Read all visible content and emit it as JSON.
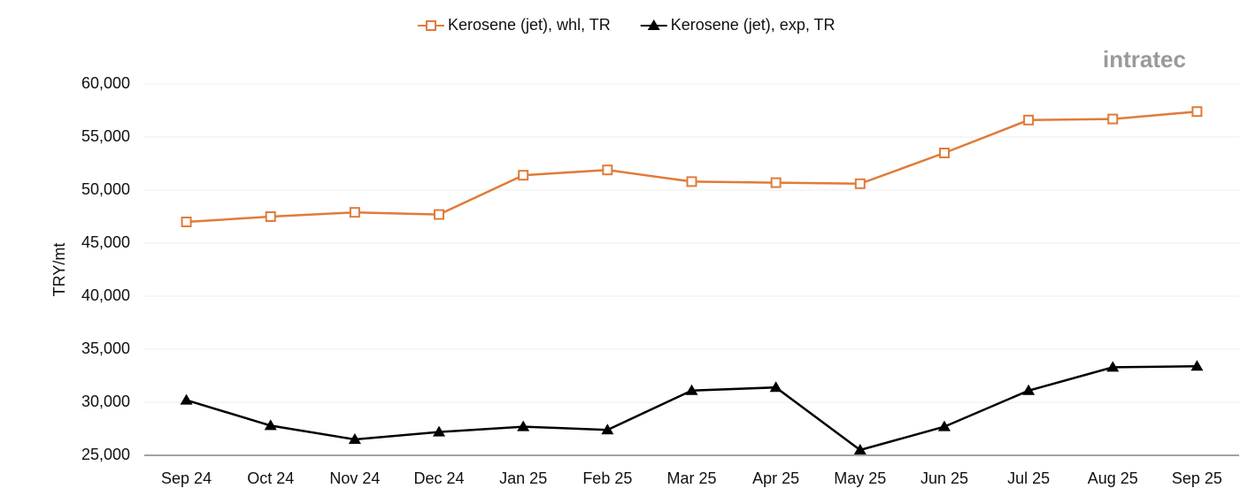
{
  "chart_data": {
    "type": "line",
    "y_label": "TRY/mt",
    "logo": "intratec",
    "categories": [
      "Sep 24",
      "Oct 24",
      "Nov 24",
      "Dec 24",
      "Jan 25",
      "Feb 25",
      "Mar 25",
      "Apr 25",
      "May 25",
      "Jun 25",
      "Jul 25",
      "Aug 25",
      "Sep 25"
    ],
    "series": [
      {
        "name": "Kerosene (jet), whl, TR",
        "color": "#e07b39",
        "marker": "square",
        "values": [
          47000,
          47500,
          47900,
          47700,
          51400,
          51900,
          50800,
          50700,
          50600,
          53500,
          56600,
          56700,
          57400
        ]
      },
      {
        "name": "Kerosene (jet), exp, TR",
        "color": "#000000",
        "marker": "triangle",
        "values": [
          30200,
          27800,
          26500,
          27200,
          27700,
          27400,
          31100,
          31400,
          25500,
          27700,
          31100,
          33300,
          33400
        ]
      }
    ],
    "ylim": [
      25000,
      60000
    ],
    "yticks": [
      {
        "value": 25000,
        "label": "25,000"
      },
      {
        "value": 30000,
        "label": "30,000"
      },
      {
        "value": 35000,
        "label": "35,000"
      },
      {
        "value": 40000,
        "label": "40,000"
      },
      {
        "value": 45000,
        "label": "45,000"
      },
      {
        "value": 50000,
        "label": "50,000"
      },
      {
        "value": 55000,
        "label": "55,000"
      },
      {
        "value": 60000,
        "label": "60,000"
      }
    ],
    "grid": true,
    "legend": "top"
  }
}
